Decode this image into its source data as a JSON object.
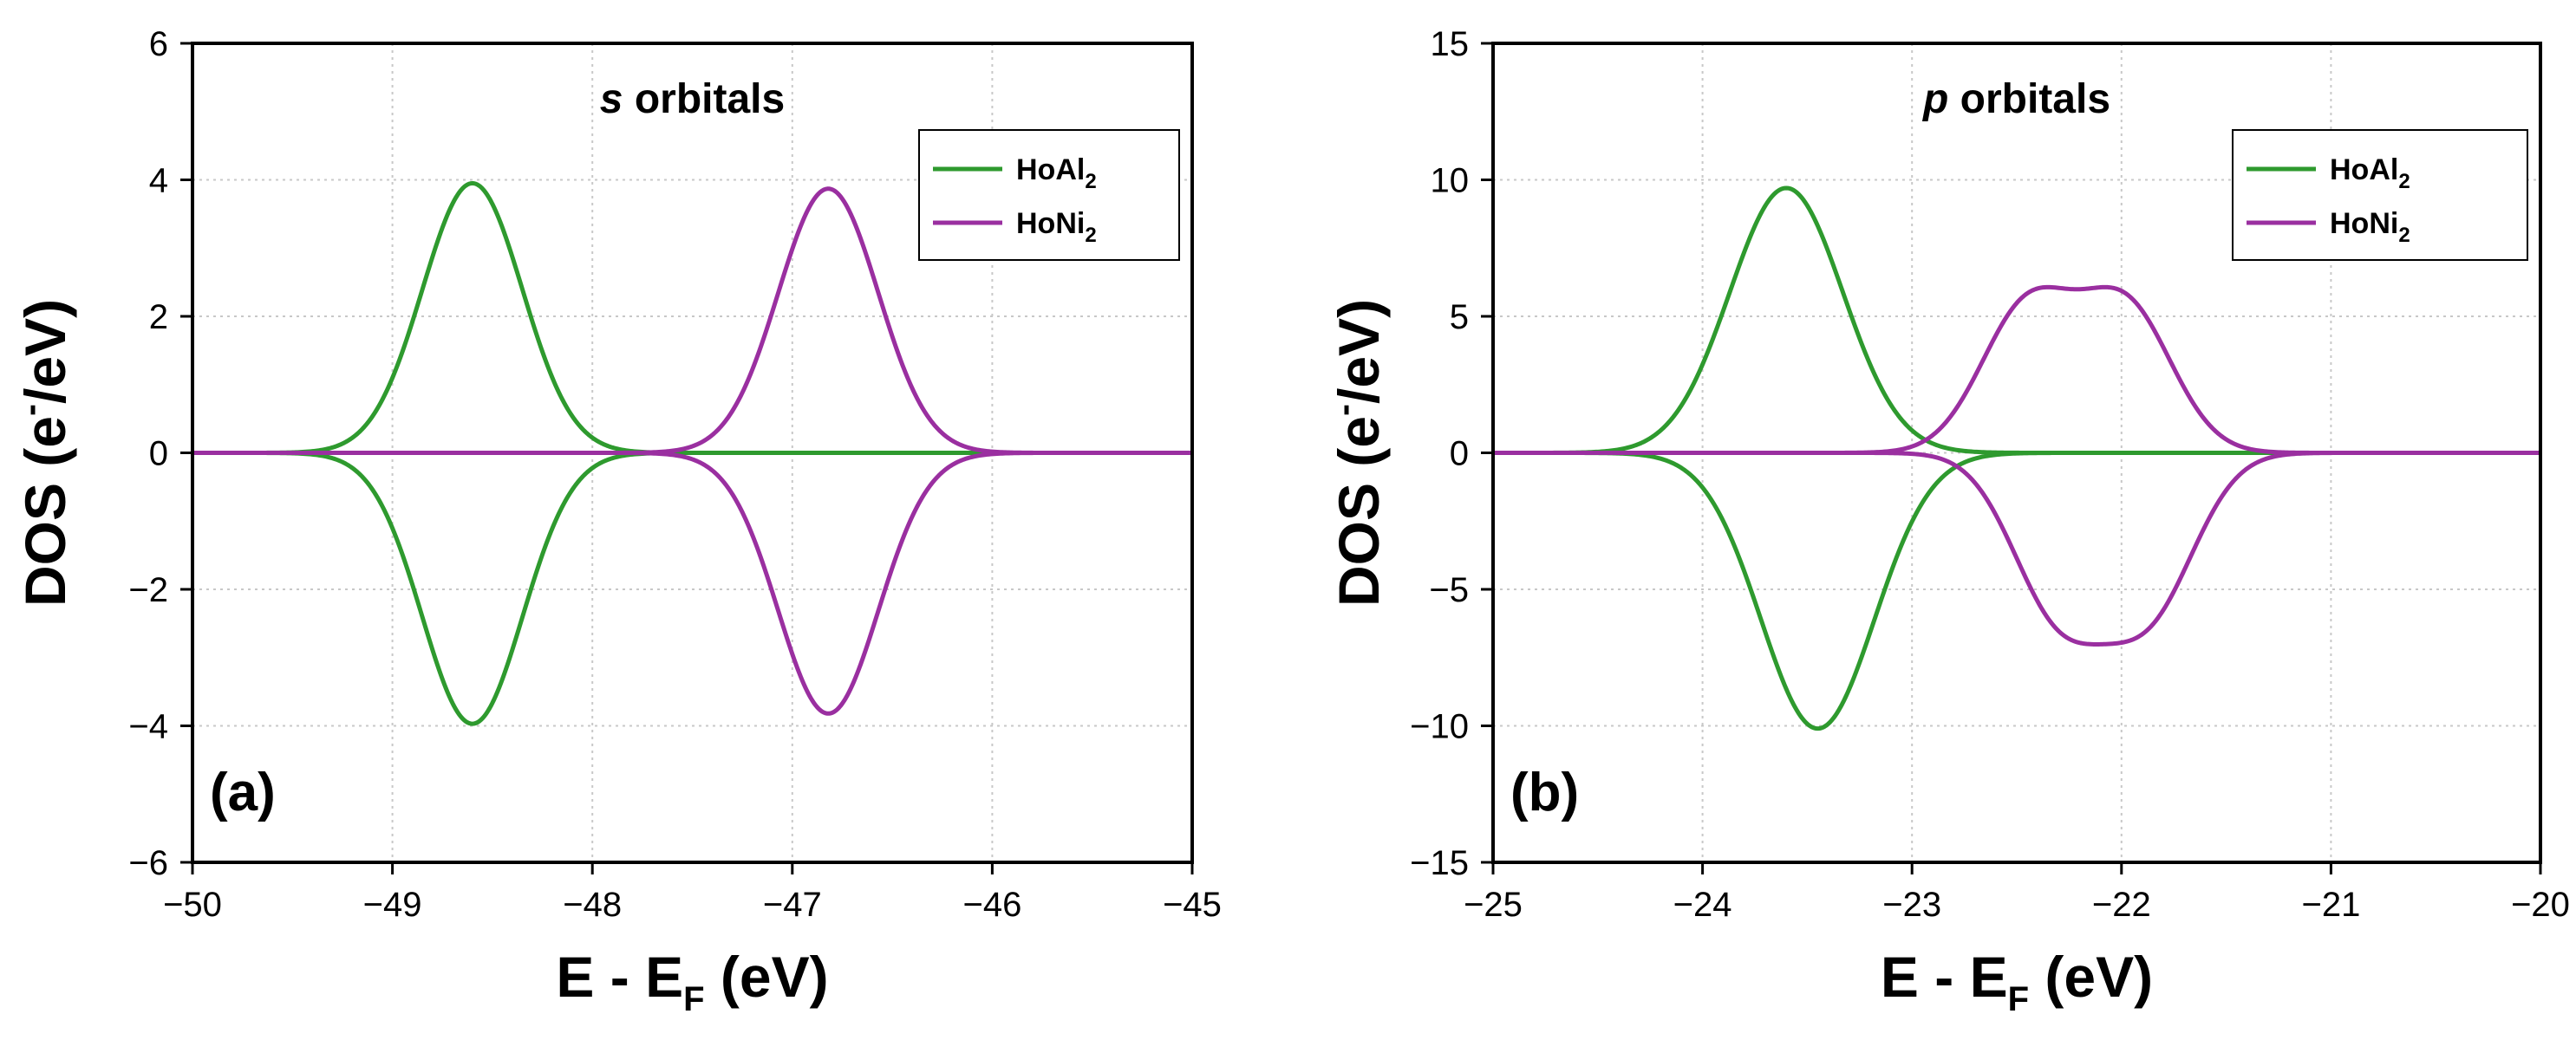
{
  "chart_data": [
    {
      "type": "line",
      "title_italic": "s",
      "title_rest": " orbitals",
      "panel_label": "(a)",
      "xlabel_main": "E - E",
      "xlabel_sub": "F",
      "xlabel_tail": " (eV)",
      "ylabel_main": "DOS (e",
      "ylabel_sup": "-",
      "ylabel_tail": "/eV)",
      "xlim": [
        -50,
        -45
      ],
      "ylim": [
        -6,
        6
      ],
      "xticks": [
        -50,
        -49,
        -48,
        -47,
        -46,
        -45
      ],
      "yticks": [
        -6,
        -4,
        -2,
        0,
        2,
        4,
        6
      ],
      "grid": true,
      "legend_position": "top-right",
      "series": [
        {
          "name": "HoAl",
          "name_sub": "2",
          "color": "#2e9a2e",
          "peaks": [
            {
              "center": -48.6,
              "amplitude": 3.95,
              "sigma": 0.25
            }
          ],
          "down_peaks": [
            {
              "center": -48.6,
              "amplitude": -3.97,
              "sigma": 0.25
            }
          ]
        },
        {
          "name": "HoNi",
          "name_sub": "2",
          "color": "#9a2fa0",
          "peaks": [
            {
              "center": -46.82,
              "amplitude": 3.87,
              "sigma": 0.25
            }
          ],
          "down_peaks": [
            {
              "center": -46.82,
              "amplitude": -3.82,
              "sigma": 0.25
            }
          ]
        }
      ]
    },
    {
      "type": "line",
      "title_italic": "p",
      "title_rest": " orbitals",
      "panel_label": "(b)",
      "xlabel_main": "E - E",
      "xlabel_sub": "F",
      "xlabel_tail": " (eV)",
      "ylabel_main": "DOS (e",
      "ylabel_sup": "-",
      "ylabel_tail": "/eV)",
      "xlim": [
        -25,
        -20
      ],
      "ylim": [
        -15,
        15
      ],
      "xticks": [
        -25,
        -24,
        -23,
        -22,
        -21,
        -20
      ],
      "yticks": [
        -15,
        -10,
        -5,
        0,
        5,
        10,
        15
      ],
      "grid": true,
      "legend_position": "top-right",
      "series": [
        {
          "name": "HoAl",
          "name_sub": "2",
          "color": "#2e9a2e",
          "peaks": [
            {
              "center": -23.6,
              "amplitude": 9.7,
              "sigma": 0.27
            }
          ],
          "down_peaks": [
            {
              "center": -23.45,
              "amplitude": -10.1,
              "sigma": 0.27
            }
          ]
        },
        {
          "name": "HoNi",
          "name_sub": "2",
          "color": "#9a2fa0",
          "peaks": [
            {
              "center": -22.45,
              "amplitude": 5.3,
              "sigma": 0.22
            },
            {
              "center": -21.98,
              "amplitude": 5.3,
              "sigma": 0.22
            }
          ],
          "down_peaks": [
            {
              "center": -22.3,
              "amplitude": -5.7,
              "sigma": 0.22
            },
            {
              "center": -21.87,
              "amplitude": -5.6,
              "sigma": 0.22
            }
          ]
        }
      ]
    }
  ]
}
